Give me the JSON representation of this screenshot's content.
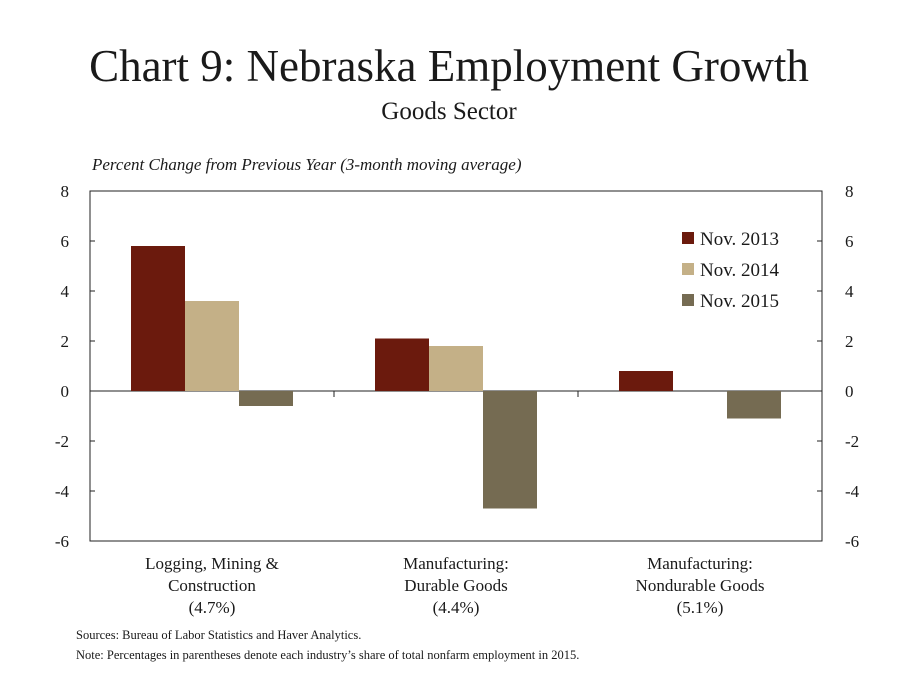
{
  "title": "Chart 9: Nebraska Employment Growth",
  "subtitle": "Goods Sector",
  "unit_label": "Percent Change from Previous Year (3-month moving average)",
  "sources": "Sources: Bureau of Labor Statistics and Haver Analytics.",
  "note": "Note: Percentages  in parentheses denote each industry’s share of  total nonfarm employment in 2015.",
  "chart_data": {
    "type": "bar",
    "categories": [
      [
        "Logging, Mining &",
        "Construction",
        "(4.7%)"
      ],
      [
        "Manufacturing:",
        "Durable Goods",
        "(4.4%)"
      ],
      [
        "Manufacturing:",
        "Nondurable Goods",
        "(5.1%)"
      ]
    ],
    "series": [
      {
        "name": "Nov. 2013",
        "color": "#6b1a0d",
        "values": [
          5.8,
          2.1,
          0.8
        ]
      },
      {
        "name": "Nov. 2014",
        "color": "#c4b087",
        "values": [
          3.6,
          1.8,
          0.0
        ]
      },
      {
        "name": "Nov. 2015",
        "color": "#756b52",
        "values": [
          -0.6,
          -4.7,
          -1.1
        ]
      }
    ],
    "ylim": [
      -6,
      8
    ],
    "yticks": [
      "8",
      "6",
      "4",
      "2",
      "0",
      "-2",
      "-4",
      "-6"
    ],
    "y2ticks": [
      "8",
      "6",
      "4",
      "2",
      "0",
      "-2",
      "-4",
      "-6"
    ],
    "legend_position": "top-right",
    "grid": false
  }
}
